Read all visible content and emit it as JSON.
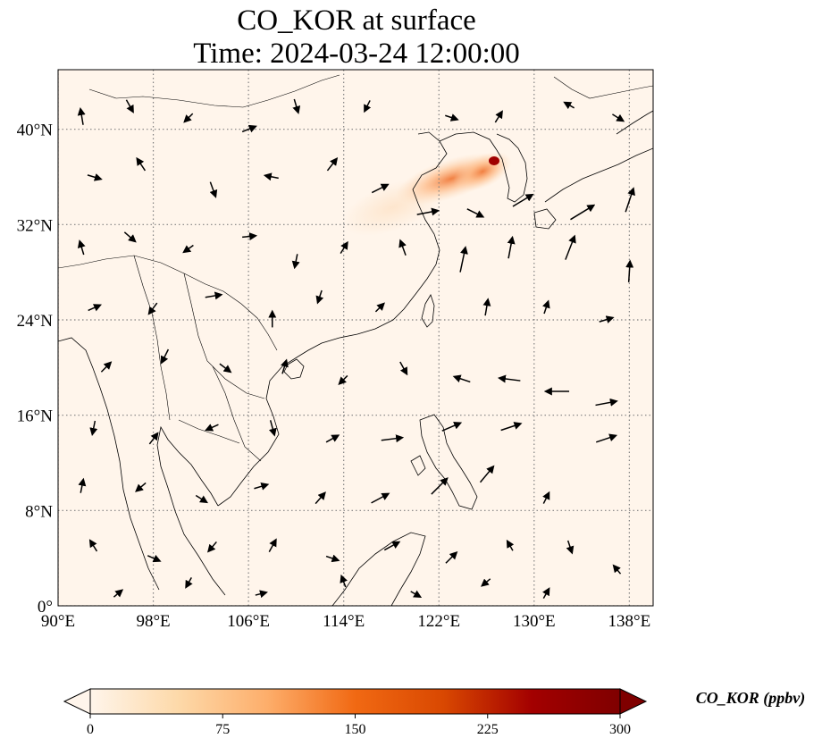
{
  "title": "CO_KOR at surface",
  "subtitle": "Time: 2024-03-24 12:00:00",
  "map": {
    "lon_range": [
      90,
      140
    ],
    "lat_range": [
      0,
      45
    ],
    "lon_ticks": [
      {
        "value": 90,
        "label": "90°E"
      },
      {
        "value": 98,
        "label": "98°E"
      },
      {
        "value": 106,
        "label": "106°E"
      },
      {
        "value": 114,
        "label": "114°E"
      },
      {
        "value": 122,
        "label": "122°E"
      },
      {
        "value": 130,
        "label": "130°E"
      },
      {
        "value": 138,
        "label": "138°E"
      }
    ],
    "lat_ticks": [
      {
        "value": 0,
        "label": "0°"
      },
      {
        "value": 8,
        "label": "8°N"
      },
      {
        "value": 16,
        "label": "16°N"
      },
      {
        "value": 24,
        "label": "24°N"
      },
      {
        "value": 32,
        "label": "32°N"
      },
      {
        "value": 40,
        "label": "40°N"
      }
    ],
    "gridlines": true,
    "background_color": "#fff5eb",
    "plume_color": "#e4602a",
    "peak_color": "#a00000"
  },
  "colorbar": {
    "label": "CO_KOR (ppbv)",
    "ticks": [
      0,
      75,
      150,
      225,
      300
    ],
    "range": [
      0,
      300
    ],
    "colormap": "OrRd-style",
    "stops": [
      "#fff5eb",
      "#fdd9a9",
      "#fdae6b",
      "#f16913",
      "#d94801",
      "#a30000",
      "#7f0000"
    ]
  },
  "wind_vectors": [
    {
      "lon": 92,
      "lat": 41,
      "u": -0.2,
      "v": 1.2
    },
    {
      "lon": 96,
      "lat": 42,
      "u": 0.5,
      "v": -0.9
    },
    {
      "lon": 101,
      "lat": 41,
      "u": -0.6,
      "v": -0.6
    },
    {
      "lon": 106,
      "lat": 40,
      "u": 1.0,
      "v": 0.4
    },
    {
      "lon": 110,
      "lat": 42,
      "u": 0.3,
      "v": -1.0
    },
    {
      "lon": 116,
      "lat": 42,
      "u": -0.4,
      "v": -0.8
    },
    {
      "lon": 123,
      "lat": 41,
      "u": 0.9,
      "v": -0.3
    },
    {
      "lon": 127,
      "lat": 41,
      "u": 0.5,
      "v": 0.8
    },
    {
      "lon": 133,
      "lat": 42,
      "u": -0.7,
      "v": 0.4
    },
    {
      "lon": 137,
      "lat": 41,
      "u": 0.8,
      "v": -0.5
    },
    {
      "lon": 93,
      "lat": 36,
      "u": 1.0,
      "v": -0.3
    },
    {
      "lon": 97,
      "lat": 37,
      "u": -0.6,
      "v": 0.9
    },
    {
      "lon": 103,
      "lat": 35,
      "u": 0.4,
      "v": -1.1
    },
    {
      "lon": 108,
      "lat": 36,
      "u": -1.0,
      "v": 0.2
    },
    {
      "lon": 113,
      "lat": 37,
      "u": 0.7,
      "v": 0.9
    },
    {
      "lon": 117,
      "lat": 35,
      "u": 1.2,
      "v": 0.6
    },
    {
      "lon": 121,
      "lat": 33,
      "u": 1.6,
      "v": 0.3
    },
    {
      "lon": 125,
      "lat": 33,
      "u": 1.2,
      "v": -0.6
    },
    {
      "lon": 129,
      "lat": 34,
      "u": 1.5,
      "v": 0.9
    },
    {
      "lon": 134,
      "lat": 33,
      "u": 1.8,
      "v": 1.1
    },
    {
      "lon": 138,
      "lat": 34,
      "u": 0.6,
      "v": 1.8
    },
    {
      "lon": 92,
      "lat": 30,
      "u": -0.3,
      "v": 1.0
    },
    {
      "lon": 96,
      "lat": 31,
      "u": 0.8,
      "v": -0.7
    },
    {
      "lon": 101,
      "lat": 30,
      "u": -0.7,
      "v": -0.5
    },
    {
      "lon": 106,
      "lat": 31,
      "u": 1.0,
      "v": 0.1
    },
    {
      "lon": 110,
      "lat": 29,
      "u": -0.2,
      "v": -1.0
    },
    {
      "lon": 114,
      "lat": 30,
      "u": 0.5,
      "v": 0.8
    },
    {
      "lon": 119,
      "lat": 30,
      "u": -0.4,
      "v": 1.1
    },
    {
      "lon": 124,
      "lat": 29,
      "u": 0.4,
      "v": 1.9
    },
    {
      "lon": 128,
      "lat": 30,
      "u": 0.3,
      "v": 1.6
    },
    {
      "lon": 133,
      "lat": 30,
      "u": 0.7,
      "v": 1.8
    },
    {
      "lon": 138,
      "lat": 28,
      "u": 0.1,
      "v": 1.6
    },
    {
      "lon": 93,
      "lat": 25,
      "u": 0.9,
      "v": 0.4
    },
    {
      "lon": 98,
      "lat": 25,
      "u": -0.6,
      "v": -0.8
    },
    {
      "lon": 103,
      "lat": 26,
      "u": 1.2,
      "v": 0.2
    },
    {
      "lon": 108,
      "lat": 24,
      "u": 0.0,
      "v": 1.2
    },
    {
      "lon": 112,
      "lat": 26,
      "u": -0.3,
      "v": -0.9
    },
    {
      "lon": 117,
      "lat": 25,
      "u": 0.6,
      "v": 0.6
    },
    {
      "lon": 126,
      "lat": 25,
      "u": 0.2,
      "v": 1.2
    },
    {
      "lon": 131,
      "lat": 25,
      "u": 0.3,
      "v": 0.9
    },
    {
      "lon": 136,
      "lat": 24,
      "u": 1.0,
      "v": 0.3
    },
    {
      "lon": 94,
      "lat": 20,
      "u": 0.7,
      "v": 0.7
    },
    {
      "lon": 99,
      "lat": 21,
      "u": -0.5,
      "v": -1.0
    },
    {
      "lon": 104,
      "lat": 20,
      "u": 0.8,
      "v": -0.6
    },
    {
      "lon": 109,
      "lat": 20,
      "u": 0.3,
      "v": 1.0
    },
    {
      "lon": 114,
      "lat": 19,
      "u": -0.6,
      "v": -0.6
    },
    {
      "lon": 119,
      "lat": 20,
      "u": 0.5,
      "v": -0.9
    },
    {
      "lon": 124,
      "lat": 19,
      "u": -1.2,
      "v": 0.4
    },
    {
      "lon": 128,
      "lat": 19,
      "u": -1.6,
      "v": 0.2
    },
    {
      "lon": 132,
      "lat": 18,
      "u": -1.8,
      "v": 0.0
    },
    {
      "lon": 136,
      "lat": 17,
      "u": 1.6,
      "v": 0.3
    },
    {
      "lon": 93,
      "lat": 15,
      "u": -0.2,
      "v": -1.0
    },
    {
      "lon": 98,
      "lat": 14,
      "u": 0.6,
      "v": 0.8
    },
    {
      "lon": 103,
      "lat": 15,
      "u": -0.9,
      "v": -0.4
    },
    {
      "lon": 108,
      "lat": 15,
      "u": 0.3,
      "v": -1.1
    },
    {
      "lon": 113,
      "lat": 14,
      "u": 0.9,
      "v": 0.5
    },
    {
      "lon": 118,
      "lat": 14,
      "u": 1.6,
      "v": 0.2
    },
    {
      "lon": 123,
      "lat": 15,
      "u": 1.4,
      "v": 0.6
    },
    {
      "lon": 128,
      "lat": 15,
      "u": 1.5,
      "v": 0.5
    },
    {
      "lon": 136,
      "lat": 14,
      "u": 1.5,
      "v": 0.5
    },
    {
      "lon": 92,
      "lat": 10,
      "u": 0.2,
      "v": 1.0
    },
    {
      "lon": 97,
      "lat": 10,
      "u": -0.7,
      "v": -0.6
    },
    {
      "lon": 102,
      "lat": 9,
      "u": 0.8,
      "v": -0.5
    },
    {
      "lon": 107,
      "lat": 10,
      "u": 1.0,
      "v": 0.3
    },
    {
      "lon": 112,
      "lat": 9,
      "u": 0.7,
      "v": 0.8
    },
    {
      "lon": 117,
      "lat": 9,
      "u": 1.3,
      "v": 0.7
    },
    {
      "lon": 122,
      "lat": 10,
      "u": 1.2,
      "v": 1.2
    },
    {
      "lon": 126,
      "lat": 11,
      "u": 1.0,
      "v": 1.2
    },
    {
      "lon": 131,
      "lat": 9,
      "u": 0.4,
      "v": 0.8
    },
    {
      "lon": 93,
      "lat": 5,
      "u": -0.5,
      "v": 0.8
    },
    {
      "lon": 98,
      "lat": 4,
      "u": 0.9,
      "v": -0.4
    },
    {
      "lon": 103,
      "lat": 5,
      "u": -0.6,
      "v": -0.7
    },
    {
      "lon": 108,
      "lat": 5,
      "u": 0.5,
      "v": 0.9
    },
    {
      "lon": 113,
      "lat": 4,
      "u": 0.9,
      "v": -0.3
    },
    {
      "lon": 118,
      "lat": 5,
      "u": 1.1,
      "v": 0.6
    },
    {
      "lon": 123,
      "lat": 4,
      "u": 0.8,
      "v": 0.8
    },
    {
      "lon": 128,
      "lat": 5,
      "u": -0.4,
      "v": 0.7
    },
    {
      "lon": 133,
      "lat": 5,
      "u": 0.3,
      "v": -0.9
    },
    {
      "lon": 95,
      "lat": 1,
      "u": 0.6,
      "v": 0.5
    },
    {
      "lon": 101,
      "lat": 2,
      "u": -0.4,
      "v": -0.7
    },
    {
      "lon": 107,
      "lat": 1,
      "u": 0.8,
      "v": 0.2
    },
    {
      "lon": 114,
      "lat": 2,
      "u": -0.3,
      "v": 0.8
    },
    {
      "lon": 120,
      "lat": 1,
      "u": 0.7,
      "v": -0.4
    },
    {
      "lon": 126,
      "lat": 2,
      "u": -0.6,
      "v": -0.5
    },
    {
      "lon": 131,
      "lat": 1,
      "u": 0.4,
      "v": 0.7
    },
    {
      "lon": 137,
      "lat": 3,
      "u": -0.5,
      "v": 0.6
    }
  ]
}
